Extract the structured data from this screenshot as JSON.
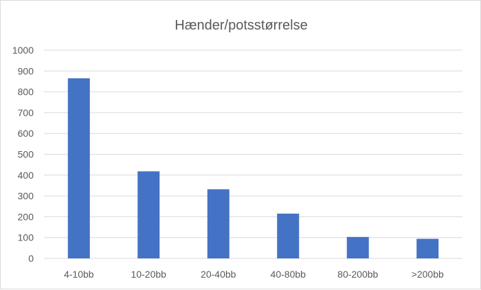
{
  "chart_data": {
    "type": "bar",
    "title": "Hænder/potsstørrelse",
    "categories": [
      "4-10bb",
      "10-20bb",
      "20-40bb",
      "40-80bb",
      "80-200bb",
      ">200bb"
    ],
    "values": [
      865,
      418,
      332,
      215,
      103,
      94
    ],
    "ylim": [
      0,
      1000
    ],
    "yticks": [
      0,
      100,
      200,
      300,
      400,
      500,
      600,
      700,
      800,
      900,
      1000
    ],
    "grid": true,
    "legend": "none",
    "bar_color": "#4472c4",
    "grid_color": "#d9d9d9"
  }
}
